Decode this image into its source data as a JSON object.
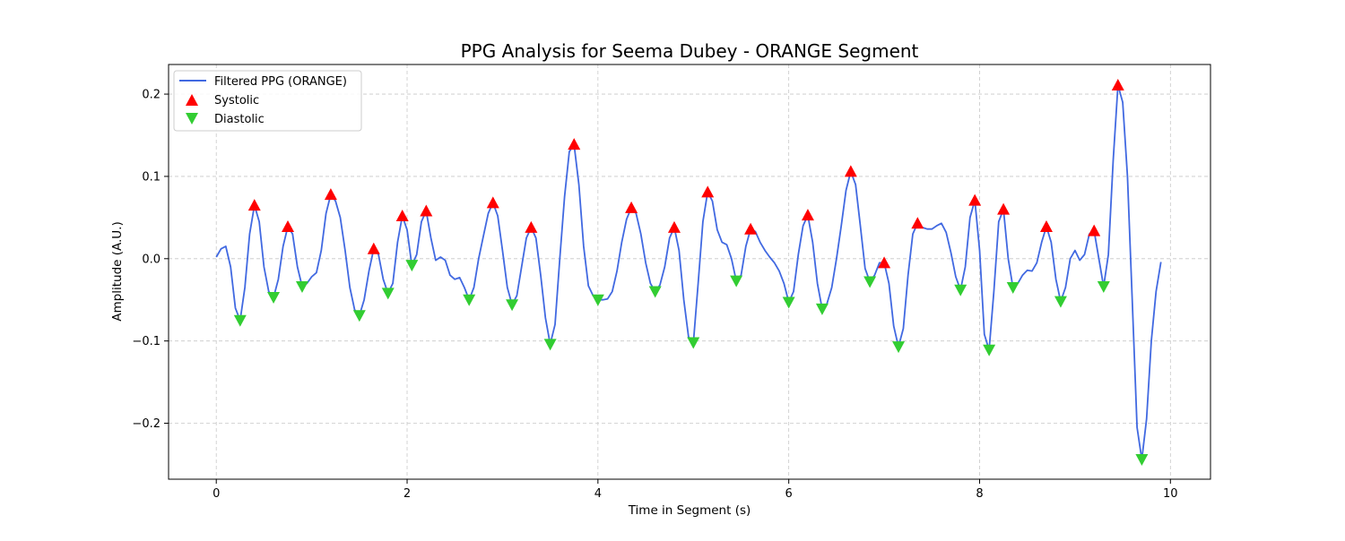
{
  "chart_data": {
    "type": "line",
    "title": "PPG Analysis for Seema Dubey - ORANGE Segment",
    "xlabel": "Time in Segment (s)",
    "ylabel": "Amplitude (A.U.)",
    "xlim": [
      -0.5,
      10.42
    ],
    "ylim": [
      -0.268,
      0.236
    ],
    "x_ticks": [
      0,
      2,
      4,
      6,
      8,
      10
    ],
    "x_tick_labels": [
      "0",
      "2",
      "4",
      "6",
      "8",
      "10"
    ],
    "y_ticks": [
      -0.2,
      -0.1,
      0.0,
      0.1,
      0.2
    ],
    "y_tick_labels": [
      "−0.2",
      "−0.1",
      "0.0",
      "0.1",
      "0.2"
    ],
    "grid": true,
    "legend_position": "upper-left",
    "colors": {
      "line": "#4169E1",
      "systolic": "#FF0000",
      "diastolic": "#32CD32",
      "grid": "#c8c8c8"
    },
    "series": [
      {
        "name": "Filtered PPG (ORANGE)",
        "kind": "line",
        "points": [
          [
            0.0,
            0.002
          ],
          [
            0.05,
            0.012
          ],
          [
            0.1,
            0.015
          ],
          [
            0.15,
            -0.01
          ],
          [
            0.2,
            -0.06
          ],
          [
            0.25,
            -0.075
          ],
          [
            0.3,
            -0.035
          ],
          [
            0.35,
            0.03
          ],
          [
            0.4,
            0.065
          ],
          [
            0.45,
            0.045
          ],
          [
            0.5,
            -0.01
          ],
          [
            0.55,
            -0.04
          ],
          [
            0.6,
            -0.047
          ],
          [
            0.65,
            -0.025
          ],
          [
            0.7,
            0.015
          ],
          [
            0.75,
            0.039
          ],
          [
            0.8,
            0.03
          ],
          [
            0.85,
            -0.01
          ],
          [
            0.9,
            -0.034
          ],
          [
            0.95,
            -0.03
          ],
          [
            1.0,
            -0.022
          ],
          [
            1.05,
            -0.017
          ],
          [
            1.1,
            0.01
          ],
          [
            1.15,
            0.055
          ],
          [
            1.2,
            0.078
          ],
          [
            1.25,
            0.07
          ],
          [
            1.3,
            0.05
          ],
          [
            1.35,
            0.01
          ],
          [
            1.4,
            -0.035
          ],
          [
            1.45,
            -0.062
          ],
          [
            1.5,
            -0.069
          ],
          [
            1.55,
            -0.05
          ],
          [
            1.6,
            -0.015
          ],
          [
            1.65,
            0.012
          ],
          [
            1.7,
            0.005
          ],
          [
            1.75,
            -0.025
          ],
          [
            1.8,
            -0.042
          ],
          [
            1.85,
            -0.03
          ],
          [
            1.9,
            0.02
          ],
          [
            1.95,
            0.052
          ],
          [
            2.0,
            0.035
          ],
          [
            2.05,
            -0.008
          ],
          [
            2.1,
            0.005
          ],
          [
            2.15,
            0.045
          ],
          [
            2.2,
            0.058
          ],
          [
            2.25,
            0.025
          ],
          [
            2.3,
            -0.002
          ],
          [
            2.35,
            0.002
          ],
          [
            2.4,
            -0.002
          ],
          [
            2.45,
            -0.02
          ],
          [
            2.5,
            -0.025
          ],
          [
            2.55,
            -0.023
          ],
          [
            2.6,
            -0.035
          ],
          [
            2.65,
            -0.05
          ],
          [
            2.7,
            -0.035
          ],
          [
            2.75,
            0.0
          ],
          [
            2.8,
            0.028
          ],
          [
            2.85,
            0.055
          ],
          [
            2.9,
            0.068
          ],
          [
            2.95,
            0.052
          ],
          [
            3.0,
            0.01
          ],
          [
            3.05,
            -0.035
          ],
          [
            3.1,
            -0.056
          ],
          [
            3.15,
            -0.045
          ],
          [
            3.2,
            -0.01
          ],
          [
            3.25,
            0.025
          ],
          [
            3.3,
            0.038
          ],
          [
            3.35,
            0.025
          ],
          [
            3.4,
            -0.02
          ],
          [
            3.45,
            -0.072
          ],
          [
            3.5,
            -0.104
          ],
          [
            3.55,
            -0.08
          ],
          [
            3.6,
            0.0
          ],
          [
            3.65,
            0.075
          ],
          [
            3.7,
            0.13
          ],
          [
            3.75,
            0.139
          ],
          [
            3.8,
            0.09
          ],
          [
            3.85,
            0.015
          ],
          [
            3.9,
            -0.033
          ],
          [
            3.95,
            -0.045
          ],
          [
            4.0,
            -0.05
          ],
          [
            4.05,
            -0.05
          ],
          [
            4.1,
            -0.049
          ],
          [
            4.15,
            -0.04
          ],
          [
            4.2,
            -0.015
          ],
          [
            4.25,
            0.02
          ],
          [
            4.3,
            0.048
          ],
          [
            4.35,
            0.062
          ],
          [
            4.4,
            0.055
          ],
          [
            4.45,
            0.03
          ],
          [
            4.5,
            -0.005
          ],
          [
            4.55,
            -0.03
          ],
          [
            4.6,
            -0.04
          ],
          [
            4.65,
            -0.032
          ],
          [
            4.7,
            -0.01
          ],
          [
            4.75,
            0.025
          ],
          [
            4.8,
            0.038
          ],
          [
            4.85,
            0.01
          ],
          [
            4.9,
            -0.05
          ],
          [
            4.95,
            -0.095
          ],
          [
            5.0,
            -0.102
          ],
          [
            5.05,
            -0.03
          ],
          [
            5.1,
            0.045
          ],
          [
            5.15,
            0.081
          ],
          [
            5.2,
            0.07
          ],
          [
            5.25,
            0.035
          ],
          [
            5.3,
            0.02
          ],
          [
            5.35,
            0.017
          ],
          [
            5.4,
            0.0
          ],
          [
            5.45,
            -0.027
          ],
          [
            5.5,
            -0.02
          ],
          [
            5.55,
            0.015
          ],
          [
            5.6,
            0.036
          ],
          [
            5.65,
            0.033
          ],
          [
            5.7,
            0.02
          ],
          [
            5.75,
            0.01
          ],
          [
            5.8,
            0.002
          ],
          [
            5.85,
            -0.005
          ],
          [
            5.9,
            -0.015
          ],
          [
            5.95,
            -0.03
          ],
          [
            6.0,
            -0.053
          ],
          [
            6.05,
            -0.04
          ],
          [
            6.1,
            0.005
          ],
          [
            6.15,
            0.04
          ],
          [
            6.2,
            0.053
          ],
          [
            6.25,
            0.02
          ],
          [
            6.3,
            -0.03
          ],
          [
            6.35,
            -0.061
          ],
          [
            6.4,
            -0.055
          ],
          [
            6.45,
            -0.035
          ],
          [
            6.5,
            0.0
          ],
          [
            6.55,
            0.04
          ],
          [
            6.6,
            0.083
          ],
          [
            6.65,
            0.106
          ],
          [
            6.7,
            0.09
          ],
          [
            6.75,
            0.04
          ],
          [
            6.8,
            -0.012
          ],
          [
            6.85,
            -0.028
          ],
          [
            6.9,
            -0.02
          ],
          [
            6.95,
            -0.005
          ],
          [
            7.0,
            -0.005
          ],
          [
            7.05,
            -0.03
          ],
          [
            7.1,
            -0.082
          ],
          [
            7.15,
            -0.107
          ],
          [
            7.2,
            -0.085
          ],
          [
            7.25,
            -0.02
          ],
          [
            7.3,
            0.03
          ],
          [
            7.35,
            0.043
          ],
          [
            7.4,
            0.038
          ],
          [
            7.45,
            0.036
          ],
          [
            7.5,
            0.036
          ],
          [
            7.55,
            0.04
          ],
          [
            7.6,
            0.043
          ],
          [
            7.65,
            0.032
          ],
          [
            7.7,
            0.007
          ],
          [
            7.75,
            -0.022
          ],
          [
            7.8,
            -0.038
          ],
          [
            7.85,
            -0.01
          ],
          [
            7.9,
            0.05
          ],
          [
            7.95,
            0.071
          ],
          [
            8.0,
            0.01
          ],
          [
            8.05,
            -0.092
          ],
          [
            8.1,
            -0.111
          ],
          [
            8.15,
            -0.04
          ],
          [
            8.2,
            0.045
          ],
          [
            8.25,
            0.06
          ],
          [
            8.3,
            0.0
          ],
          [
            8.35,
            -0.035
          ],
          [
            8.4,
            -0.03
          ],
          [
            8.45,
            -0.02
          ],
          [
            8.5,
            -0.014
          ],
          [
            8.55,
            -0.015
          ],
          [
            8.6,
            -0.005
          ],
          [
            8.65,
            0.02
          ],
          [
            8.7,
            0.039
          ],
          [
            8.75,
            0.02
          ],
          [
            8.8,
            -0.025
          ],
          [
            8.85,
            -0.052
          ],
          [
            8.9,
            -0.035
          ],
          [
            8.95,
            0.0
          ],
          [
            9.0,
            0.01
          ],
          [
            9.05,
            -0.002
          ],
          [
            9.1,
            0.005
          ],
          [
            9.15,
            0.03
          ],
          [
            9.2,
            0.034
          ],
          [
            9.25,
            0.0
          ],
          [
            9.3,
            -0.034
          ],
          [
            9.35,
            0.005
          ],
          [
            9.4,
            0.12
          ],
          [
            9.45,
            0.211
          ],
          [
            9.5,
            0.19
          ],
          [
            9.55,
            0.1
          ],
          [
            9.6,
            -0.05
          ],
          [
            9.65,
            -0.205
          ],
          [
            9.7,
            -0.244
          ],
          [
            9.75,
            -0.195
          ],
          [
            9.8,
            -0.1
          ],
          [
            9.85,
            -0.04
          ],
          [
            9.9,
            -0.004
          ]
        ]
      },
      {
        "name": "Systolic",
        "kind": "markers",
        "marker": "triangle-up",
        "points": [
          [
            0.4,
            0.065
          ],
          [
            0.75,
            0.039
          ],
          [
            1.2,
            0.078
          ],
          [
            1.65,
            0.012
          ],
          [
            1.95,
            0.052
          ],
          [
            2.2,
            0.058
          ],
          [
            2.9,
            0.068
          ],
          [
            3.3,
            0.038
          ],
          [
            3.75,
            0.139
          ],
          [
            4.35,
            0.062
          ],
          [
            4.8,
            0.038
          ],
          [
            5.15,
            0.081
          ],
          [
            5.6,
            0.036
          ],
          [
            6.2,
            0.053
          ],
          [
            6.65,
            0.106
          ],
          [
            7.0,
            -0.005
          ],
          [
            7.35,
            0.043
          ],
          [
            7.95,
            0.071
          ],
          [
            8.25,
            0.06
          ],
          [
            8.7,
            0.039
          ],
          [
            9.2,
            0.034
          ],
          [
            9.45,
            0.211
          ]
        ]
      },
      {
        "name": "Diastolic",
        "kind": "markers",
        "marker": "triangle-down",
        "points": [
          [
            0.25,
            -0.075
          ],
          [
            0.6,
            -0.047
          ],
          [
            0.9,
            -0.034
          ],
          [
            1.5,
            -0.069
          ],
          [
            1.8,
            -0.042
          ],
          [
            2.05,
            -0.008
          ],
          [
            2.65,
            -0.05
          ],
          [
            3.1,
            -0.056
          ],
          [
            3.5,
            -0.104
          ],
          [
            4.0,
            -0.05
          ],
          [
            4.6,
            -0.04
          ],
          [
            5.0,
            -0.102
          ],
          [
            5.45,
            -0.027
          ],
          [
            6.0,
            -0.053
          ],
          [
            6.35,
            -0.061
          ],
          [
            6.85,
            -0.028
          ],
          [
            7.15,
            -0.107
          ],
          [
            7.8,
            -0.038
          ],
          [
            8.1,
            -0.111
          ],
          [
            8.35,
            -0.035
          ],
          [
            8.85,
            -0.052
          ],
          [
            9.3,
            -0.034
          ],
          [
            9.7,
            -0.244
          ]
        ]
      }
    ]
  }
}
